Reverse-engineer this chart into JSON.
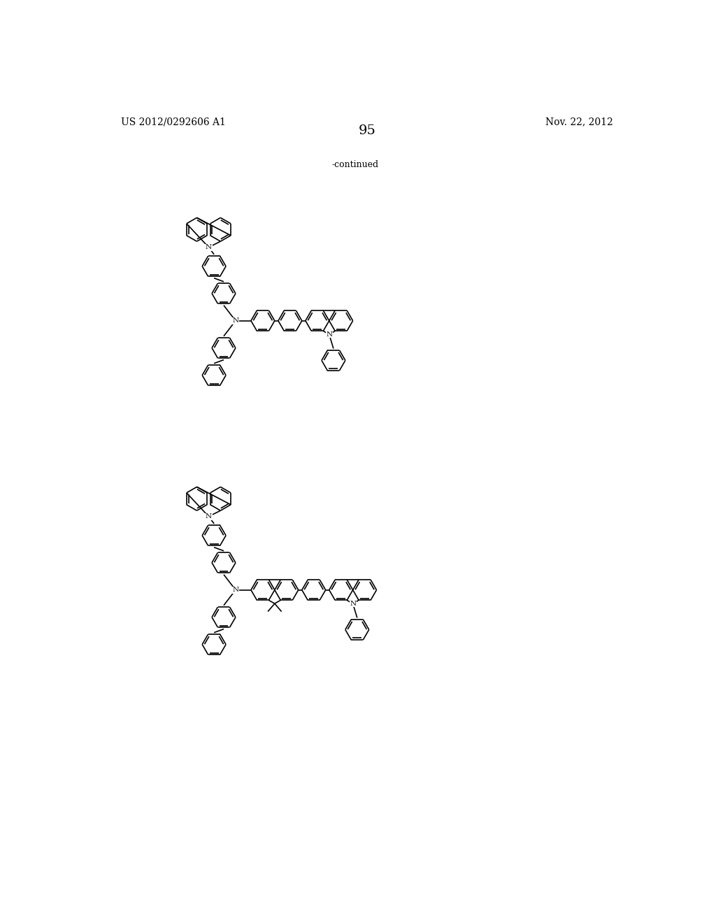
{
  "header_left": "US 2012/0292606 A1",
  "header_right": "Nov. 22, 2012",
  "page_number": "95",
  "continued_text": "-continued",
  "background_color": "#ffffff",
  "text_color": "#000000",
  "line_color": "#000000",
  "lw": 1.2,
  "R": 22
}
